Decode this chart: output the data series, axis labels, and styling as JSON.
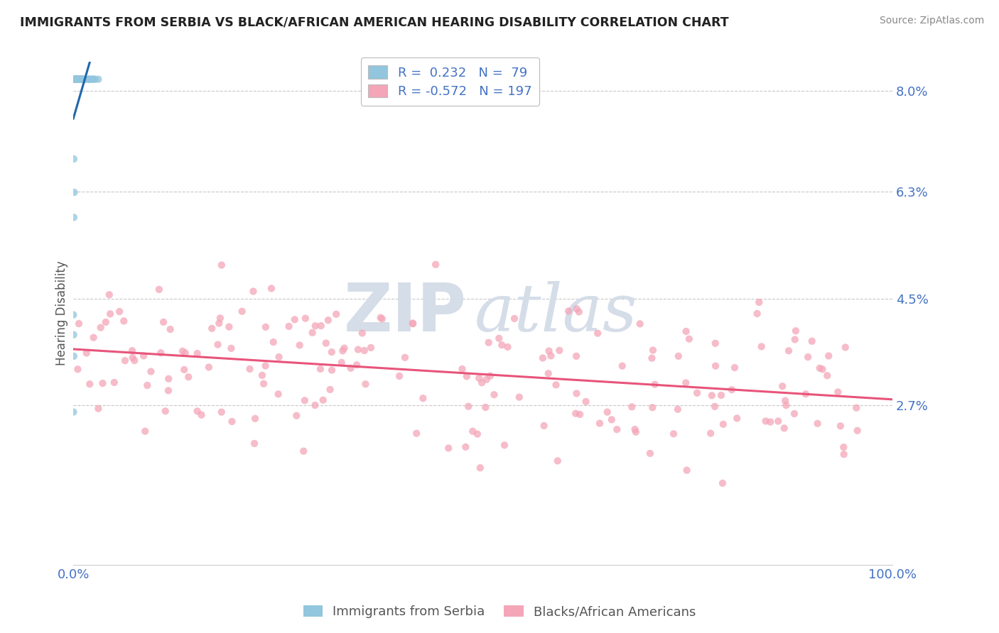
{
  "title": "IMMIGRANTS FROM SERBIA VS BLACK/AFRICAN AMERICAN HEARING DISABILITY CORRELATION CHART",
  "source": "Source: ZipAtlas.com",
  "ylabel": "Hearing Disability",
  "xlim": [
    0.0,
    1.0
  ],
  "ylim": [
    0.0,
    0.085
  ],
  "yticks": [
    0.027,
    0.045,
    0.063,
    0.08
  ],
  "ytick_labels": [
    "2.7%",
    "4.5%",
    "6.3%",
    "8.0%"
  ],
  "xtick_labels": [
    "0.0%",
    "100.0%"
  ],
  "legend_top": [
    {
      "label": "R =  0.232   N =  79",
      "color": "#92c5de"
    },
    {
      "label": "R = -0.572   N = 197",
      "color": "#f4a6b8"
    }
  ],
  "legend_labels_bottom": [
    "Immigrants from Serbia",
    "Blacks/African Americans"
  ],
  "blue_color": "#92c5de",
  "pink_color": "#f4a6b8",
  "blue_line_color": "#2166ac",
  "pink_line_color": "#e8547a",
  "grid_color": "#c8c8c8",
  "watermark_zip": "ZIP",
  "watermark_atlas": "atlas",
  "watermark_color": "#d5dde8",
  "title_color": "#222222",
  "source_color": "#888888",
  "label_color": "#4472c4",
  "ylabel_color": "#555555"
}
